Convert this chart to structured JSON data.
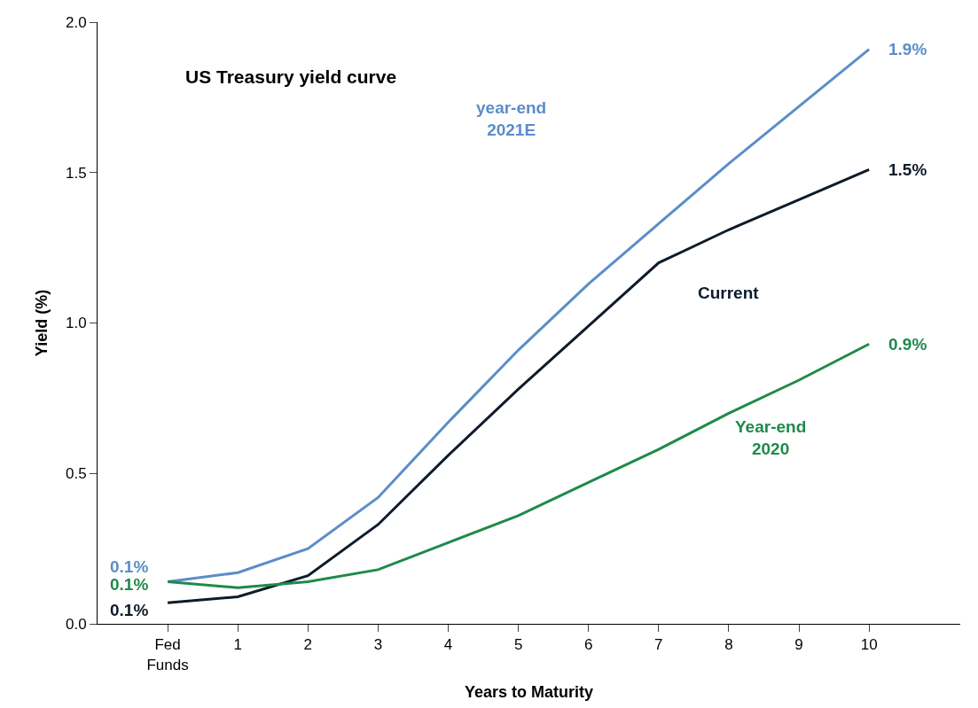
{
  "chart_data": {
    "type": "line",
    "title": "US Treasury yield curve",
    "xlabel": "Years to Maturity",
    "ylabel": "Yield (%)",
    "categories": [
      "Fed Funds",
      "1",
      "2",
      "3",
      "4",
      "5",
      "6",
      "7",
      "8",
      "9",
      "10"
    ],
    "ylim": [
      0,
      2
    ],
    "yticks": [
      {
        "value": 0,
        "label": "0.0"
      },
      0.5,
      {
        "value": 1,
        "label": "1.0"
      },
      1.5,
      {
        "value": 2,
        "label": "2.0"
      }
    ],
    "legend": false,
    "marker": "none",
    "line_style": "solid",
    "series": [
      {
        "name": "year-end 2021E",
        "color": "#5b8dc9",
        "values": [
          0.14,
          0.17,
          0.25,
          0.42,
          0.67,
          0.91,
          1.13,
          1.33,
          1.53,
          1.72,
          1.91
        ],
        "value_labels": [
          "0.1%",
          null,
          null,
          null,
          null,
          null,
          null,
          null,
          null,
          null,
          "1.9%"
        ]
      },
      {
        "name": "Current",
        "color": "#0d1b2a",
        "values": [
          0.07,
          0.09,
          0.16,
          0.33,
          0.56,
          0.78,
          0.99,
          1.2,
          1.31,
          1.41,
          1.51
        ],
        "value_labels": [
          "0.1%",
          null,
          null,
          null,
          null,
          null,
          null,
          null,
          null,
          null,
          "1.5%"
        ]
      },
      {
        "name": "Year-end 2020",
        "color": "#1e8a4a",
        "values": [
          0.14,
          0.12,
          0.14,
          0.18,
          0.27,
          0.36,
          0.47,
          0.58,
          0.7,
          0.81,
          0.93
        ],
        "value_labels": [
          "0.1%",
          null,
          null,
          null,
          null,
          null,
          null,
          null,
          null,
          null,
          "0.9%"
        ]
      }
    ]
  }
}
